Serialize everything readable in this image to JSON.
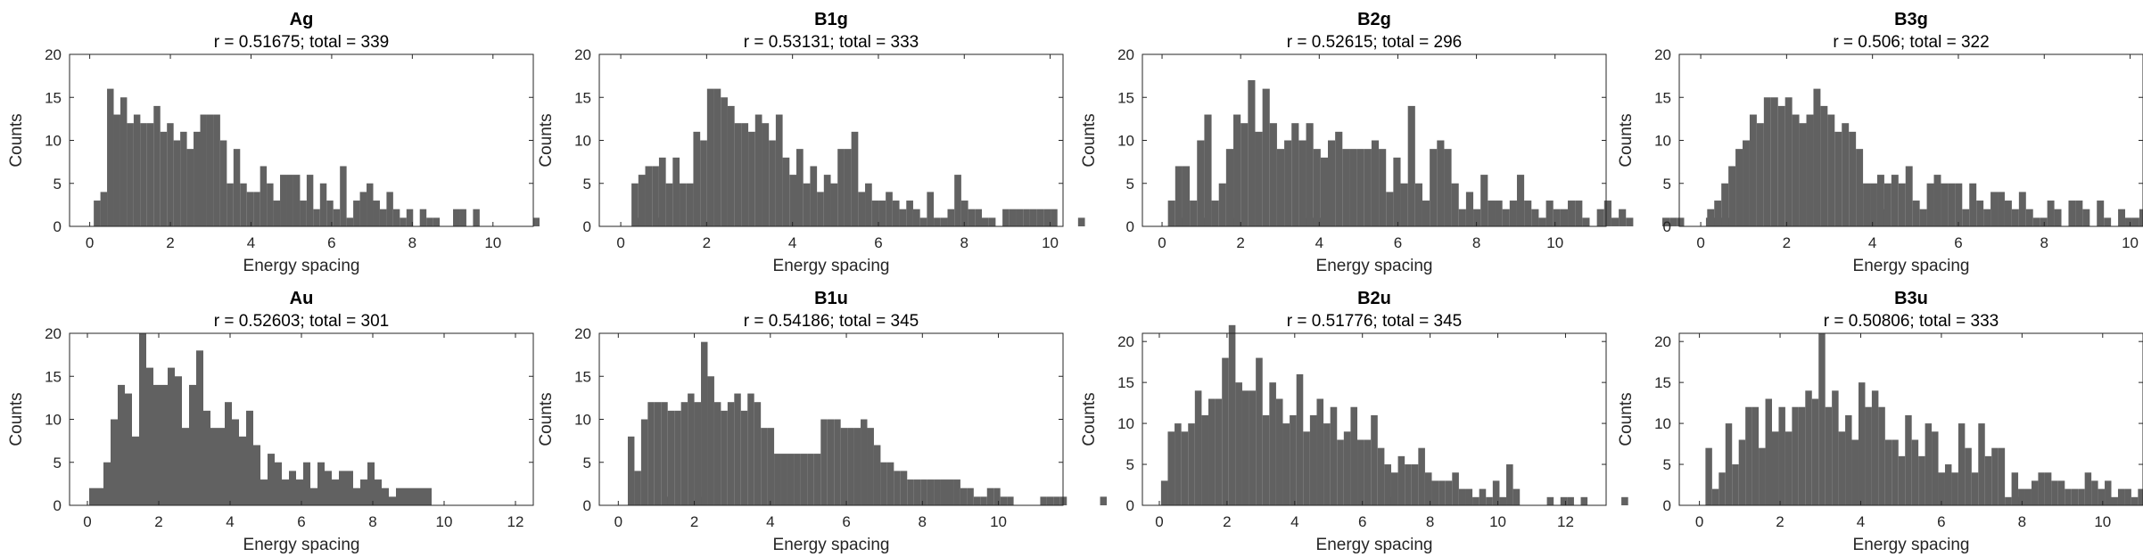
{
  "chart_data": [
    {
      "type": "bar",
      "title": "Ag",
      "subtitle": "r = 0.51675; total = 339",
      "xlabel": "Energy spacing",
      "ylabel": "Counts",
      "xlim": [
        -0.5,
        11
      ],
      "ylim": [
        0,
        20
      ],
      "xticks": [
        0,
        2,
        4,
        6,
        8,
        10
      ],
      "yticks": [
        0,
        5,
        10,
        15,
        20
      ],
      "bin_start": 0.1,
      "bin_width": 0.165,
      "values": [
        3,
        4,
        16,
        13,
        15,
        12,
        13,
        12,
        12,
        14,
        11,
        12,
        10,
        11,
        9,
        11,
        13,
        13,
        13,
        10,
        5,
        9,
        5,
        4,
        4,
        7,
        5,
        3,
        6,
        6,
        6,
        3,
        6,
        2,
        5,
        3,
        2,
        7,
        1,
        3,
        4,
        5,
        3,
        2,
        4,
        2,
        1,
        2,
        0,
        2,
        1,
        1,
        0,
        0,
        2,
        2,
        0,
        2,
        0,
        0,
        0,
        0,
        0,
        0,
        0,
        0,
        1,
        0,
        0,
        0,
        0,
        0,
        0,
        0,
        0,
        0,
        0,
        0,
        0,
        0,
        0,
        1,
        0,
        0,
        1
      ]
    },
    {
      "type": "bar",
      "title": "B1g",
      "subtitle": "r = 0.53131; total = 333",
      "xlabel": "Energy spacing",
      "ylabel": "Counts",
      "xlim": [
        -0.5,
        10.3
      ],
      "ylim": [
        0,
        20
      ],
      "xticks": [
        0,
        2,
        4,
        6,
        8,
        10
      ],
      "yticks": [
        0,
        5,
        10,
        15,
        20
      ],
      "bin_start": 0.25,
      "bin_width": 0.16,
      "values": [
        5,
        6,
        7,
        7,
        8,
        5,
        8,
        5,
        5,
        11,
        10,
        16,
        16,
        15,
        14,
        12,
        12,
        11,
        13,
        12,
        10,
        13,
        8,
        6,
        9,
        5,
        7,
        4,
        6,
        5,
        9,
        9,
        11,
        4,
        5,
        3,
        3,
        4,
        3,
        2,
        3,
        2,
        1,
        4,
        1,
        1,
        2,
        6,
        3,
        2,
        2,
        1,
        1,
        0,
        2,
        2,
        2,
        2,
        2,
        2,
        2,
        2,
        0,
        0,
        0,
        1,
        0,
        0,
        0,
        0,
        0,
        0,
        0,
        0,
        0,
        0,
        0,
        0,
        0,
        0,
        1,
        0,
        0,
        1,
        0,
        0,
        0,
        1,
        0,
        0,
        0,
        0,
        0,
        0,
        0,
        0,
        0,
        0,
        1,
        1,
        1,
        0
      ]
    },
    {
      "type": "bar",
      "title": "B2g",
      "subtitle": "r = 0.52615; total = 296",
      "xlabel": "Energy spacing",
      "ylabel": "Counts",
      "xlim": [
        -0.5,
        11.3
      ],
      "ylim": [
        0,
        20
      ],
      "xticks": [
        0,
        2,
        4,
        6,
        8,
        10
      ],
      "yticks": [
        0,
        5,
        10,
        15,
        20
      ],
      "bin_start": 0.15,
      "bin_width": 0.185,
      "values": [
        3,
        7,
        7,
        3,
        10,
        13,
        3,
        5,
        9,
        13,
        12,
        17,
        11,
        16,
        12,
        9,
        10,
        12,
        10,
        12,
        9,
        8,
        10,
        11,
        9,
        9,
        9,
        9,
        10,
        9,
        4,
        8,
        5,
        14,
        5,
        3,
        9,
        10,
        9,
        5,
        2,
        4,
        2,
        6,
        3,
        3,
        2,
        3,
        6,
        3,
        2,
        1,
        3,
        2,
        2,
        3,
        3,
        1,
        0,
        2,
        3,
        1,
        2,
        1,
        0,
        0,
        0,
        0,
        1,
        1,
        1,
        0,
        0,
        0,
        1,
        1,
        1,
        1,
        0,
        0,
        0,
        0,
        0,
        0,
        0,
        0,
        0,
        0,
        0,
        0,
        0,
        0,
        0,
        0,
        0,
        0,
        0,
        0,
        2
      ]
    },
    {
      "type": "bar",
      "title": "B3g",
      "subtitle": "r = 0.506; total = 322",
      "xlabel": "Energy spacing",
      "ylabel": "Counts",
      "xlim": [
        -0.5,
        10.3
      ],
      "ylim": [
        0,
        20
      ],
      "xticks": [
        0,
        2,
        4,
        6,
        8,
        10
      ],
      "yticks": [
        0,
        5,
        10,
        15,
        20
      ],
      "bin_start": 0.15,
      "bin_width": 0.165,
      "values": [
        2,
        3,
        5,
        7,
        9,
        10,
        13,
        12,
        15,
        15,
        14,
        15,
        13,
        12,
        13,
        16,
        14,
        13,
        11,
        12,
        11,
        9,
        5,
        5,
        6,
        5,
        6,
        5,
        7,
        3,
        2,
        5,
        6,
        5,
        5,
        5,
        2,
        5,
        3,
        2,
        4,
        4,
        3,
        2,
        4,
        2,
        1,
        1,
        3,
        2,
        0,
        3,
        3,
        2,
        0,
        3,
        1,
        0,
        2,
        1,
        1,
        2,
        3,
        1,
        3,
        3,
        1,
        0,
        0,
        1,
        2,
        1,
        0,
        0,
        0,
        0,
        0,
        1,
        1,
        1,
        1,
        1,
        1,
        1,
        1,
        1,
        1,
        1,
        0,
        0,
        0,
        2
      ]
    },
    {
      "type": "bar",
      "title": "Au",
      "subtitle": "r = 0.52603; total = 301",
      "xlabel": "Energy spacing",
      "ylabel": "Counts",
      "xlim": [
        -0.5,
        12.5
      ],
      "ylim": [
        0,
        20
      ],
      "xticks": [
        0,
        2,
        4,
        6,
        8,
        10,
        12
      ],
      "yticks": [
        0,
        5,
        10,
        15,
        20
      ],
      "bin_start": 0.05,
      "bin_width": 0.2,
      "values": [
        2,
        2,
        5,
        10,
        14,
        13,
        8,
        20,
        16,
        14,
        14,
        16,
        15,
        9,
        14,
        18,
        11,
        9,
        9,
        12,
        10,
        8,
        11,
        7,
        3,
        6,
        5,
        3,
        4,
        3,
        5,
        2,
        5,
        4,
        3,
        4,
        4,
        2,
        3,
        5,
        3,
        2,
        1,
        2,
        2,
        2,
        2,
        2,
        0,
        0,
        0,
        0,
        0,
        0,
        0,
        0,
        0,
        0,
        0,
        0,
        0,
        0,
        0,
        0,
        0,
        0,
        0,
        0,
        0,
        0,
        0,
        0,
        0,
        0,
        0,
        0,
        0,
        0,
        0,
        0,
        0,
        1,
        0,
        0,
        0,
        1
      ]
    },
    {
      "type": "bar",
      "title": "B1u",
      "subtitle": "r = 0.54186; total = 345",
      "xlabel": "Energy spacing",
      "ylabel": "Counts",
      "xlim": [
        -0.5,
        11.7
      ],
      "ylim": [
        0,
        20
      ],
      "xticks": [
        0,
        2,
        4,
        6,
        8,
        10
      ],
      "yticks": [
        0,
        5,
        10,
        15,
        20
      ],
      "bin_start": 0.25,
      "bin_width": 0.175,
      "values": [
        8,
        4,
        10,
        12,
        12,
        12,
        11,
        11,
        12,
        13,
        12,
        19,
        15,
        12,
        11,
        12,
        13,
        11,
        13,
        12,
        9,
        9,
        6,
        6,
        6,
        6,
        6,
        6,
        6,
        10,
        10,
        10,
        9,
        9,
        9,
        10,
        9,
        7,
        5,
        5,
        4,
        4,
        3,
        3,
        3,
        3,
        3,
        3,
        3,
        3,
        2,
        2,
        1,
        1,
        2,
        2,
        1,
        1,
        0,
        0,
        0,
        0,
        1,
        1,
        1,
        1,
        0,
        0,
        0,
        0,
        0,
        1,
        0,
        0,
        0,
        0,
        0,
        0,
        0,
        0,
        0,
        0,
        0,
        0,
        0,
        0,
        0,
        0,
        0,
        0,
        0,
        0,
        0,
        0,
        0,
        0,
        0,
        0,
        0,
        0,
        0,
        0,
        0,
        0,
        0,
        0,
        0,
        0,
        0,
        0,
        0,
        0,
        0,
        0,
        1
      ]
    },
    {
      "type": "bar",
      "title": "B2u",
      "subtitle": "r = 0.51776; total = 345",
      "xlabel": "Energy spacing",
      "ylabel": "Counts",
      "xlim": [
        -0.5,
        13.2
      ],
      "ylim": [
        0,
        21
      ],
      "xticks": [
        0,
        2,
        4,
        6,
        8,
        10,
        12
      ],
      "yticks": [
        0,
        5,
        10,
        15,
        20
      ],
      "bin_start": 0.05,
      "bin_width": 0.2,
      "values": [
        3,
        9,
        10,
        9,
        10,
        14,
        11,
        13,
        13,
        18,
        22,
        15,
        14,
        14,
        18,
        11,
        15,
        13,
        10,
        11,
        16,
        9,
        11,
        13,
        10,
        12,
        8,
        9,
        12,
        8,
        8,
        11,
        7,
        5,
        4,
        6,
        5,
        5,
        7,
        4,
        3,
        3,
        3,
        4,
        2,
        2,
        1,
        2,
        1,
        3,
        1,
        5,
        2,
        0,
        0,
        0,
        0,
        1,
        0,
        1,
        1,
        0,
        1,
        0,
        0,
        0,
        0,
        0,
        1,
        0,
        0,
        0,
        0,
        0,
        0,
        0,
        0,
        0,
        0,
        0,
        0,
        0,
        0,
        0,
        0,
        0,
        0,
        0,
        0,
        0,
        0,
        0,
        0,
        0,
        0,
        0,
        0,
        0,
        0,
        0,
        0,
        0,
        0,
        0,
        0,
        0,
        0,
        0,
        0,
        0,
        0,
        0,
        0,
        0,
        0,
        0,
        0,
        0,
        0,
        0,
        0,
        0,
        0,
        0,
        0,
        0,
        1
      ]
    },
    {
      "type": "bar",
      "title": "B3u",
      "subtitle": "r = 0.50806; total = 333",
      "xlabel": "Energy spacing",
      "ylabel": "Counts",
      "xlim": [
        -0.5,
        11
      ],
      "ylim": [
        0,
        21
      ],
      "xticks": [
        0,
        2,
        4,
        6,
        8,
        10
      ],
      "yticks": [
        0,
        5,
        10,
        15,
        20
      ],
      "bin_start": 0.15,
      "bin_width": 0.165,
      "values": [
        7,
        2,
        4,
        10,
        5,
        8,
        12,
        12,
        7,
        13,
        9,
        12,
        9,
        12,
        12,
        14,
        13,
        21,
        12,
        14,
        9,
        11,
        8,
        15,
        12,
        14,
        12,
        8,
        8,
        6,
        11,
        8,
        6,
        10,
        9,
        4,
        5,
        4,
        10,
        7,
        4,
        10,
        6,
        7,
        7,
        1,
        4,
        2,
        2,
        3,
        4,
        4,
        3,
        3,
        2,
        2,
        2,
        4,
        3,
        2,
        3,
        1,
        2,
        2,
        1,
        2,
        1,
        0,
        0,
        0,
        0,
        1,
        2,
        1,
        0,
        0,
        1,
        0,
        0,
        0,
        0,
        1,
        0,
        1,
        0,
        0,
        0,
        1
      ]
    }
  ]
}
